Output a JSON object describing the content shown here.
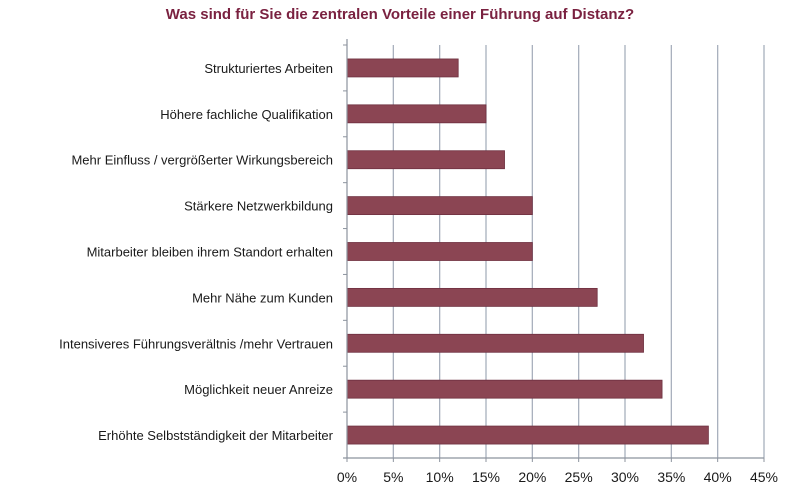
{
  "chart_data": {
    "type": "bar",
    "orientation": "horizontal",
    "title": "Was sind für Sie die zentralen Vorteile einer Führung auf Distanz?",
    "xlabel": "",
    "ylabel": "",
    "categories": [
      "Strukturiertes Arbeiten",
      "Höhere fachliche Qualifikation",
      "Mehr Einfluss / vergrößerter Wirkungsbereich",
      "Stärkere Netzwerkbildung",
      "Mitarbeiter bleiben ihrem Standort erhalten",
      "Mehr Nähe zum Kunden",
      "Intensiveres Führungsverältnis  /mehr Vertrauen",
      "Möglichkeit neuer Anreize",
      "Erhöhte Selbstständigkeit der Mitarbeiter"
    ],
    "values": [
      12,
      15,
      17,
      20,
      20,
      27,
      32,
      34,
      39
    ],
    "unit": "%",
    "xlim": [
      0,
      45
    ],
    "xticks": [
      0,
      5,
      10,
      15,
      20,
      25,
      30,
      35,
      40,
      45
    ],
    "xtick_labels": [
      "0%",
      "5%",
      "10%",
      "15%",
      "20%",
      "25%",
      "30%",
      "35%",
      "40%",
      "45%"
    ],
    "grid": "vertical",
    "legend": "none",
    "colors": {
      "bar": "#8b4553",
      "bar_border": "#6e3040",
      "grid": "#a8b0bd",
      "title": "#7a2140"
    }
  }
}
